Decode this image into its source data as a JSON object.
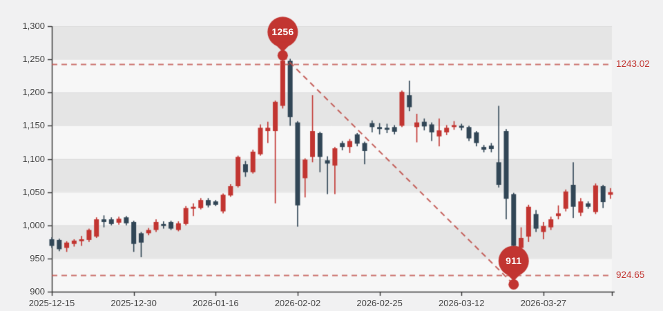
{
  "page": {
    "background": "#f1f1f2"
  },
  "chart_data": {
    "type": "candlestick",
    "title": "",
    "xlabel": "",
    "ylabel": "",
    "ohlc_order": [
      "open",
      "close",
      "low",
      "high"
    ],
    "dates": [
      "2025-12-15",
      "2025-12-16",
      "2025-12-17",
      "2025-12-18",
      "2025-12-19",
      "2025-12-22",
      "2025-12-23",
      "2025-12-24",
      "2025-12-25",
      "2025-12-26",
      "2025-12-29",
      "2025-12-30",
      "2025-12-31",
      "2026-01-02",
      "2026-01-05",
      "2026-01-06",
      "2026-01-07",
      "2026-01-08",
      "2026-01-09",
      "2026-01-12",
      "2026-01-13",
      "2026-01-14",
      "2026-01-16",
      "2026-01-19",
      "2026-01-20",
      "2026-01-21",
      "2026-01-22",
      "2026-01-23",
      "2026-01-26",
      "2026-01-27",
      "2026-01-28",
      "2026-01-29",
      "2026-01-30",
      "2026-02-02",
      "2026-02-03",
      "2026-02-04",
      "2026-02-05",
      "2026-02-09",
      "2026-02-10",
      "2026-02-12",
      "2026-02-13",
      "2026-02-17",
      "2026-02-19",
      "2026-02-23",
      "2026-02-25",
      "2026-02-26",
      "2026-02-27",
      "2026-03-02",
      "2026-03-03",
      "2026-03-04",
      "2026-03-05",
      "2026-03-06",
      "2026-03-09",
      "2026-03-10",
      "2026-03-11",
      "2026-03-12",
      "2026-03-13",
      "2026-03-16",
      "2026-03-17",
      "2026-03-18",
      "2026-03-19",
      "2026-03-20",
      "2026-03-23",
      "2026-03-24",
      "2026-03-25",
      "2026-03-26",
      "2026-03-27",
      "2026-03-30",
      "2026-03-31",
      "2026-04-01",
      "2026-04-02",
      "2026-04-03",
      "2026-04-06",
      "2026-04-07",
      "2026-04-08",
      "2026-04-09"
    ],
    "ohlc": [
      [
        979,
        969,
        966,
        982
      ],
      [
        978,
        964,
        961,
        980
      ],
      [
        966,
        974,
        960,
        976
      ],
      [
        972,
        977,
        968,
        979
      ],
      [
        976,
        979,
        969,
        984
      ],
      [
        978,
        993,
        975,
        995
      ],
      [
        983,
        1009,
        981,
        1012
      ],
      [
        1009,
        1005,
        997,
        1015
      ],
      [
        1009,
        1002,
        1000,
        1012
      ],
      [
        1004,
        1010,
        1001,
        1013
      ],
      [
        1012,
        1003,
        1000,
        1014
      ],
      [
        1005,
        972,
        960,
        1007
      ],
      [
        988,
        974,
        952,
        990
      ],
      [
        988,
        993,
        985,
        996
      ],
      [
        993,
        1005,
        990,
        1009
      ],
      [
        1002,
        999,
        995,
        1006
      ],
      [
        1005,
        995,
        993,
        1007
      ],
      [
        993,
        1003,
        991,
        1006
      ],
      [
        1002,
        1026,
        1000,
        1029
      ],
      [
        1025,
        1028,
        1014,
        1033
      ],
      [
        1026,
        1038,
        1024,
        1041
      ],
      [
        1038,
        1030,
        1027,
        1041
      ],
      [
        1036,
        1031,
        1029,
        1038
      ],
      [
        1021,
        1046,
        1018,
        1048
      ],
      [
        1045,
        1059,
        1043,
        1062
      ],
      [
        1059,
        1103,
        1057,
        1105
      ],
      [
        1092,
        1080,
        1073,
        1097
      ],
      [
        1080,
        1111,
        1078,
        1114
      ],
      [
        1107,
        1147,
        1105,
        1152
      ],
      [
        1142,
        1147,
        1124,
        1156
      ],
      [
        1142,
        1186,
        1033,
        1188
      ],
      [
        1180,
        1248,
        1176,
        1256
      ],
      [
        1248,
        1163,
        1150,
        1251
      ],
      [
        1155,
        1030,
        998,
        1157
      ],
      [
        1071,
        1099,
        1042,
        1101
      ],
      [
        1103,
        1142,
        1095,
        1196
      ],
      [
        1139,
        1103,
        1080,
        1141
      ],
      [
        1098,
        1093,
        1047,
        1104
      ],
      [
        1090,
        1116,
        1047,
        1118
      ],
      [
        1124,
        1118,
        1113,
        1127
      ],
      [
        1118,
        1127,
        1109,
        1130
      ],
      [
        1137,
        1123,
        1119,
        1139
      ],
      [
        1124,
        1112,
        1092,
        1126
      ],
      [
        1154,
        1148,
        1140,
        1158
      ],
      [
        1148,
        1145,
        1137,
        1154
      ],
      [
        1147,
        1144,
        1139,
        1153
      ],
      [
        1148,
        1141,
        1137,
        1151
      ],
      [
        1150,
        1201,
        1148,
        1203
      ],
      [
        1196,
        1178,
        1172,
        1218
      ],
      [
        1148,
        1155,
        1125,
        1168
      ],
      [
        1156,
        1149,
        1143,
        1161
      ],
      [
        1152,
        1140,
        1127,
        1155
      ],
      [
        1134,
        1143,
        1119,
        1161
      ],
      [
        1140,
        1147,
        1136,
        1151
      ],
      [
        1148,
        1151,
        1144,
        1157
      ],
      [
        1150,
        1147,
        1143,
        1153
      ],
      [
        1148,
        1131,
        1127,
        1150
      ],
      [
        1140,
        1124,
        1119,
        1142
      ],
      [
        1118,
        1114,
        1110,
        1121
      ],
      [
        1120,
        1115,
        1110,
        1124
      ],
      [
        1095,
        1061,
        1057,
        1180
      ],
      [
        1142,
        1040,
        1009,
        1145
      ],
      [
        1047,
        969,
        911,
        1049
      ],
      [
        966,
        981,
        958,
        997
      ],
      [
        983,
        1028,
        975,
        1031
      ],
      [
        1017,
        995,
        990,
        1023
      ],
      [
        990,
        999,
        979,
        1005
      ],
      [
        997,
        1009,
        993,
        1013
      ],
      [
        1014,
        1018,
        1009,
        1030
      ],
      [
        1025,
        1051,
        1021,
        1054
      ],
      [
        1061,
        1028,
        1011,
        1095
      ],
      [
        1019,
        1036,
        1014,
        1041
      ],
      [
        1033,
        1028,
        1025,
        1036
      ],
      [
        1020,
        1060,
        1017,
        1063
      ],
      [
        1059,
        1035,
        1026,
        1061
      ],
      [
        1046,
        1050,
        1040,
        1056
      ]
    ],
    "x_axis": {
      "tick_labels": [
        "2025-12-15",
        "2025-12-30",
        "2026-01-16",
        "2026-02-02",
        "2026-02-25",
        "2026-03-12",
        "2026-03-27"
      ],
      "ticks_every_n_candles": 11
    },
    "y_axis": {
      "min": 900,
      "max": 1300,
      "step": 50,
      "tick_labels": [
        "1,300",
        "1,250",
        "1,200",
        "1,150",
        "1,100",
        "1,050",
        "1,000",
        "950",
        "900"
      ]
    },
    "grid": {
      "split_area": true,
      "band_color_dark": "#e5e5e5",
      "band_color_light": "#f7f7f7",
      "grid_line_color": "rgba(0,0,0,0.05)"
    },
    "colors": {
      "bullish": "#c23531",
      "bearish": "#314656",
      "markline": "#c0504a",
      "markline_label": "#c23531",
      "axis": "#333333",
      "axis_label": "#454545",
      "pin": "#c23531",
      "pin_text": "#ffffff"
    },
    "mark_points": [
      {
        "kind": "max",
        "label": "1256",
        "value": 1256,
        "index": 31
      },
      {
        "kind": "min",
        "label": "911",
        "value": 911,
        "index": 62
      }
    ],
    "mark_lines": [
      {
        "label": "1243.02",
        "value": 1243.02
      },
      {
        "label": "924.65",
        "value": 924.65
      }
    ],
    "trend_line": {
      "from_index": 31,
      "from_value": 1256,
      "to_index": 62,
      "to_value": 911
    },
    "legend": null
  }
}
